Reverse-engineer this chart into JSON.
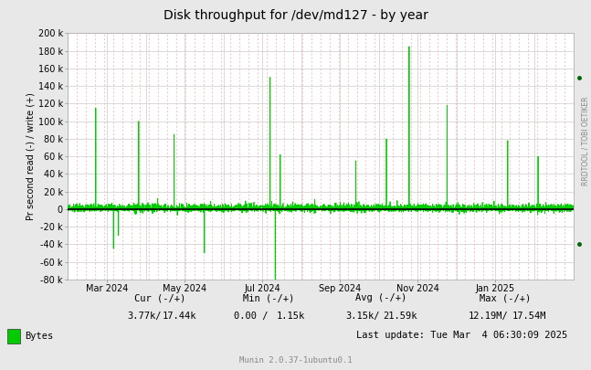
{
  "title": "Disk throughput for /dev/md127 - by year",
  "ylabel": "Pr second read (-) / write (+)",
  "right_label": "RRDTOOL / TOBI OETIKER",
  "bg_color": "#e8e8e8",
  "plot_bg_color": "#ffffff",
  "grid_color_major": "#cccccc",
  "grid_color_minor": "#ffcccc",
  "line_color": "#00cc00",
  "zero_line_color": "#000000",
  "ylim": [
    -80000,
    200000
  ],
  "yticks": [
    -80000,
    -60000,
    -40000,
    -20000,
    0,
    20000,
    40000,
    60000,
    80000,
    100000,
    120000,
    140000,
    160000,
    180000,
    200000
  ],
  "xlabel_dates": [
    "Mar 2024",
    "May 2024",
    "Jul 2024",
    "Sep 2024",
    "Nov 2024",
    "Jan 2025"
  ],
  "legend_label": "Bytes",
  "legend_color": "#00cc00",
  "cur_neg": "3.77k/",
  "cur_pos": "17.44k",
  "min_neg": "0.00 /",
  "min_pos": "1.15k",
  "avg_neg": "3.15k/",
  "avg_pos": "21.59k",
  "max_neg": "12.19M/",
  "max_pos": "17.54M",
  "last_update": "Last update: Tue Mar  4 06:30:09 2025",
  "munin_version": "Munin 2.0.37-1ubuntu0.1",
  "dot_color": "#006600",
  "figsize": [
    6.47,
    4.05
  ],
  "dpi": 100
}
